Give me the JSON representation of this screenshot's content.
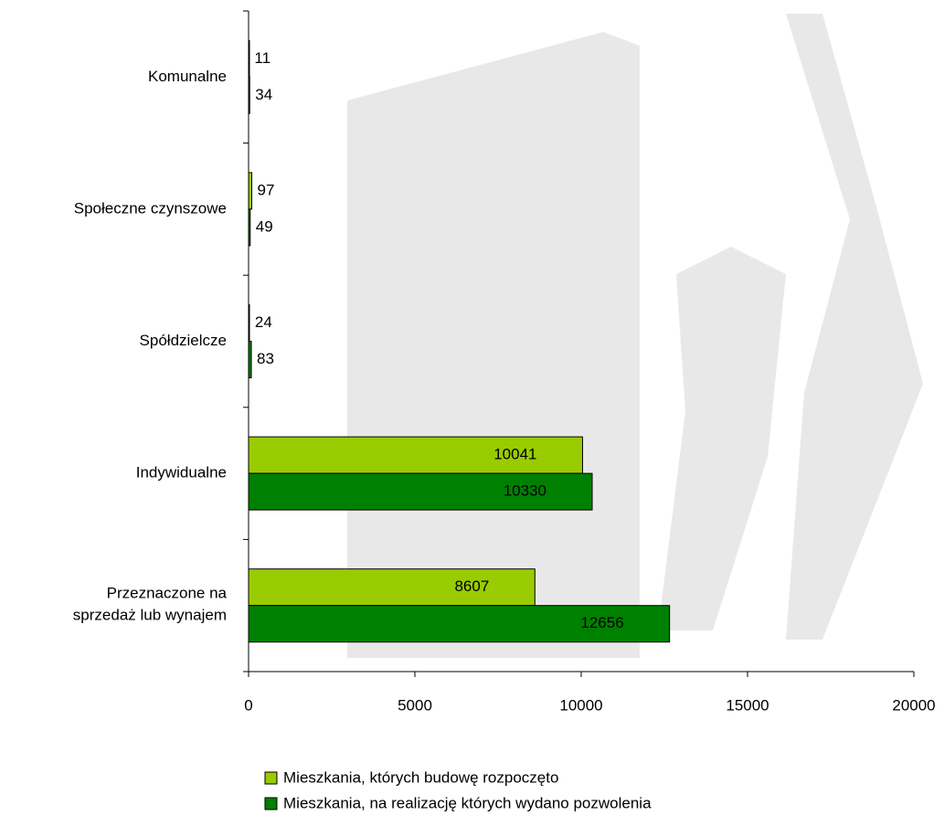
{
  "chart_data": {
    "type": "bar",
    "orientation": "horizontal",
    "categories": [
      "Komunalne",
      "Społeczne czynszowe",
      "Spółdzielcze",
      "Indywidualne",
      "Przeznaczone na\nsprzedaż lub wynajem"
    ],
    "series": [
      {
        "name": "Mieszkania, których budowę rozpoczęto",
        "color": "#99cc00",
        "values": [
          11,
          97,
          24,
          10041,
          8607
        ]
      },
      {
        "name": "Mieszkania, na realizację których wydano pozwolenia",
        "color": "#008000",
        "values": [
          34,
          49,
          83,
          10330,
          12656
        ]
      }
    ],
    "xlim": [
      0,
      20000
    ],
    "xticks": [
      0,
      5000,
      10000,
      15000,
      20000
    ]
  }
}
